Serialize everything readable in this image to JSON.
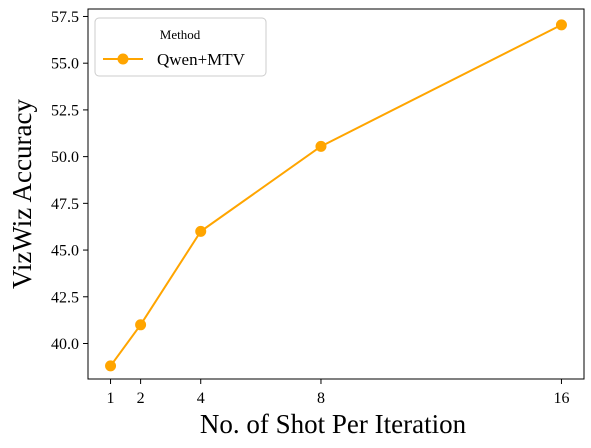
{
  "chart_data": {
    "type": "line",
    "xlabel": "No. of Shot Per Iteration",
    "ylabel": "VizWiz Accuracy",
    "x": [
      1,
      2,
      4,
      8,
      16
    ],
    "x_ticks": [
      1,
      2,
      4,
      8,
      16
    ],
    "y_ticks": [
      40.0,
      42.5,
      45.0,
      47.5,
      50.0,
      52.5,
      55.0,
      57.5
    ],
    "y_tick_labels": [
      "40.0",
      "42.5",
      "45.0",
      "47.5",
      "50.0",
      "52.5",
      "55.0",
      "57.5"
    ],
    "xlim": [
      0.25,
      16.75
    ],
    "ylim": [
      38.1,
      57.9
    ],
    "grid": false,
    "legend": {
      "title": "Method",
      "placement": "top-left"
    },
    "series": [
      {
        "name": "Qwen+MTV",
        "color": "#FFA500",
        "marker": "circle",
        "values": [
          38.8,
          41.0,
          46.0,
          50.55,
          57.05
        ]
      }
    ]
  }
}
